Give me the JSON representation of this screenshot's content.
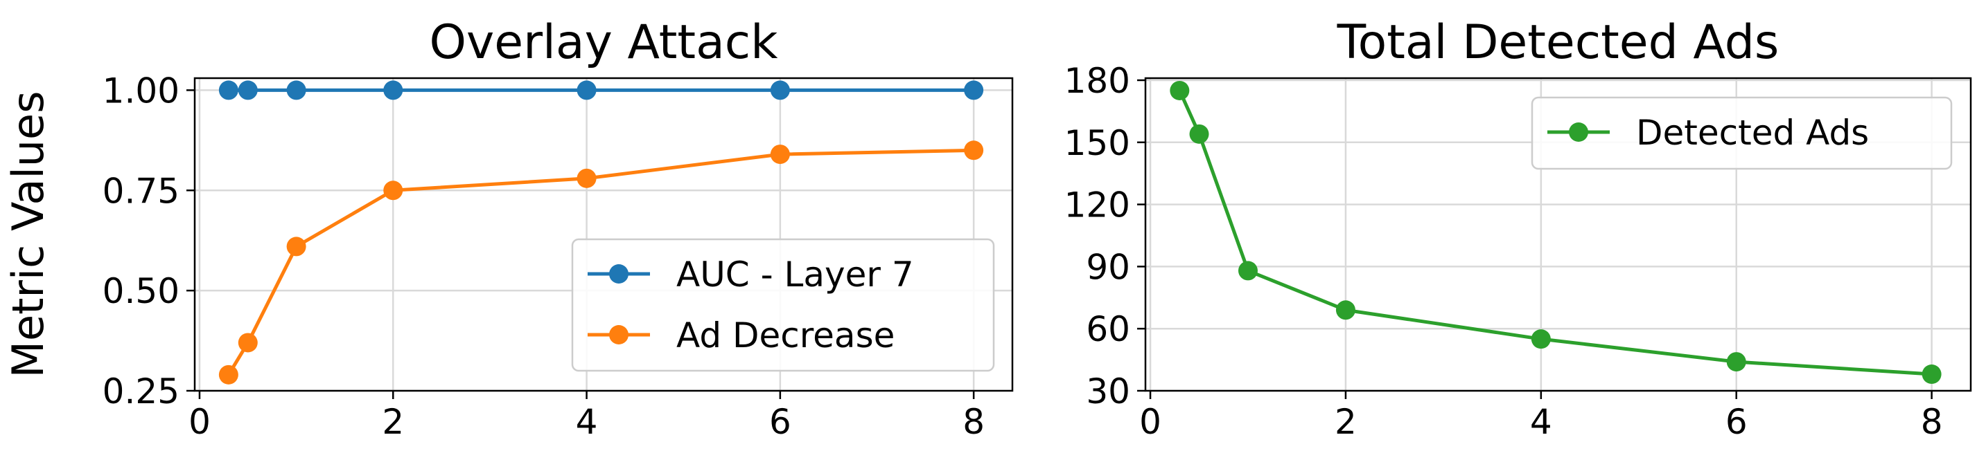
{
  "chart_data": [
    {
      "type": "line",
      "title": "Overlay Attack",
      "xlabel": "",
      "ylabel": "Metric Values",
      "x": [
        0.3,
        0.5,
        1,
        2,
        4,
        6,
        8
      ],
      "xlim": [
        -0.05,
        8.4
      ],
      "ylim": [
        0.25,
        1.03
      ],
      "xticks": [
        0,
        2,
        4,
        6,
        8
      ],
      "yticks": [
        0.25,
        0.5,
        0.75,
        1.0
      ],
      "ytick_labels": [
        "0.25",
        "0.50",
        "0.75",
        "1.00"
      ],
      "grid": true,
      "legend_position": "lower-right",
      "series": [
        {
          "name": "AUC - Layer 7",
          "color": "#1f77b4",
          "values": [
            1.0,
            1.0,
            1.0,
            1.0,
            1.0,
            1.0,
            1.0
          ]
        },
        {
          "name": "Ad Decrease",
          "color": "#ff7f0e",
          "values": [
            0.29,
            0.37,
            0.61,
            0.75,
            0.78,
            0.84,
            0.85
          ]
        }
      ]
    },
    {
      "type": "line",
      "title": "Total Detected Ads",
      "xlabel": "",
      "ylabel": "",
      "x": [
        0.3,
        0.5,
        1,
        2,
        4,
        6,
        8
      ],
      "xlim": [
        -0.05,
        8.4
      ],
      "ylim": [
        30,
        181
      ],
      "xticks": [
        0,
        2,
        4,
        6,
        8
      ],
      "yticks": [
        30,
        60,
        90,
        120,
        150,
        180
      ],
      "ytick_labels": [
        "30",
        "60",
        "90",
        "120",
        "150",
        "180"
      ],
      "grid": true,
      "legend_position": "top-right",
      "series": [
        {
          "name": "Detected Ads",
          "color": "#2ca02c",
          "values": [
            175,
            154,
            88,
            69,
            55,
            44,
            38
          ]
        }
      ]
    }
  ]
}
